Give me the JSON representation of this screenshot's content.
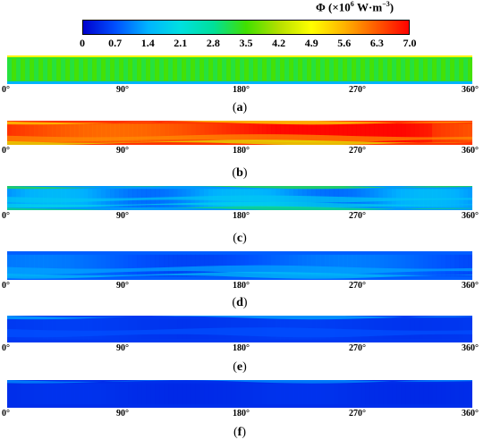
{
  "chart_data": {
    "type": "heatmap",
    "colorbar": {
      "title": "Φ (×10⁶ W·m⁻³)",
      "title_symbol": "Φ (×10",
      "title_exp": "6",
      "title_unit": " W·m",
      "title_unit_exp": "−3",
      "title_close": ")",
      "range": [
        0,
        7.0
      ],
      "ticks": [
        "0",
        "0.7",
        "1.4",
        "2.1",
        "2.8",
        "3.5",
        "4.2",
        "4.9",
        "5.6",
        "6.3",
        "7.0"
      ],
      "colors": [
        "#0000cd",
        "#0050ff",
        "#00b4ff",
        "#00e0e0",
        "#00e09a",
        "#40e000",
        "#b4e000",
        "#ffff00",
        "#ffb400",
        "#ff5a00",
        "#ff0000"
      ]
    },
    "x_ticks": [
      "0°",
      "90°",
      "180°",
      "270°",
      "360°"
    ],
    "x_range": [
      0,
      360
    ],
    "panels": [
      {
        "label": "a",
        "base_value": 3.3,
        "note": "uniform field with vertical striations"
      },
      {
        "label": "b",
        "base_value": 6.6,
        "note": "high dissipation band"
      },
      {
        "label": "c",
        "base_value": 1.2,
        "note": "low dissipation with streaks"
      },
      {
        "label": "d",
        "base_value": 0.8,
        "note": "low dissipation"
      },
      {
        "label": "e",
        "base_value": 0.5,
        "note": "near zero"
      },
      {
        "label": "f",
        "base_value": 0.4,
        "note": "near zero"
      }
    ]
  },
  "panel_label_open": "(",
  "panel_label_close": ")"
}
